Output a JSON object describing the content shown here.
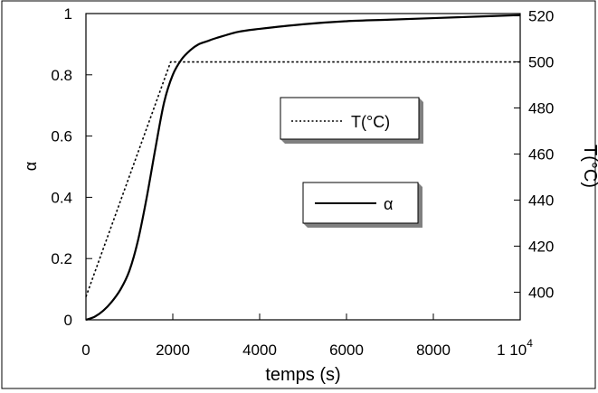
{
  "chart_data": {
    "type": "line",
    "xlabel": "temps (s)",
    "ylabel_left": "α",
    "ylabel_right": "T(°C)",
    "xlim": [
      0,
      10000
    ],
    "ylim_left": [
      0,
      1
    ],
    "ylim_right": [
      388,
      521
    ],
    "x_ticks": [
      {
        "value": 0,
        "label": "0"
      },
      {
        "value": 2000,
        "label": "2000"
      },
      {
        "value": 4000,
        "label": "4000"
      },
      {
        "value": 6000,
        "label": "6000"
      },
      {
        "value": 8000,
        "label": "8000"
      },
      {
        "value": 10000,
        "label": "1 10",
        "sup": "4"
      }
    ],
    "y_ticks_left": [
      {
        "value": 0,
        "label": "0"
      },
      {
        "value": 0.2,
        "label": "0.2"
      },
      {
        "value": 0.4,
        "label": "0.4"
      },
      {
        "value": 0.6,
        "label": "0.6"
      },
      {
        "value": 0.8,
        "label": "0.8"
      },
      {
        "value": 1,
        "label": "1"
      }
    ],
    "y_ticks_right": [
      {
        "value": 400,
        "label": "400"
      },
      {
        "value": 420,
        "label": "420"
      },
      {
        "value": 440,
        "label": "440"
      },
      {
        "value": 460,
        "label": "460"
      },
      {
        "value": 480,
        "label": "480"
      },
      {
        "value": 500,
        "label": "500"
      },
      {
        "value": 520,
        "label": "520"
      }
    ],
    "grid": false,
    "legend": [
      {
        "label": "T(°C)",
        "style": "dotted"
      },
      {
        "label": "α",
        "style": "solid"
      }
    ],
    "series": [
      {
        "name": "α",
        "axis": "left",
        "style": "solid",
        "x": [
          0,
          200,
          400,
          600,
          800,
          1000,
          1200,
          1400,
          1600,
          1800,
          2000,
          2200,
          2400,
          2600,
          2800,
          3000,
          3500,
          4000,
          5000,
          6000,
          7000,
          8000,
          9000,
          10000
        ],
        "y": [
          0,
          0.01,
          0.03,
          0.06,
          0.1,
          0.16,
          0.26,
          0.4,
          0.56,
          0.71,
          0.8,
          0.85,
          0.88,
          0.9,
          0.91,
          0.92,
          0.94,
          0.95,
          0.965,
          0.975,
          0.98,
          0.985,
          0.99,
          0.995
        ]
      },
      {
        "name": "T(°C)",
        "axis": "right",
        "style": "dotted",
        "x": [
          0,
          1950,
          10000
        ],
        "y": [
          398,
          500,
          500
        ]
      }
    ]
  }
}
